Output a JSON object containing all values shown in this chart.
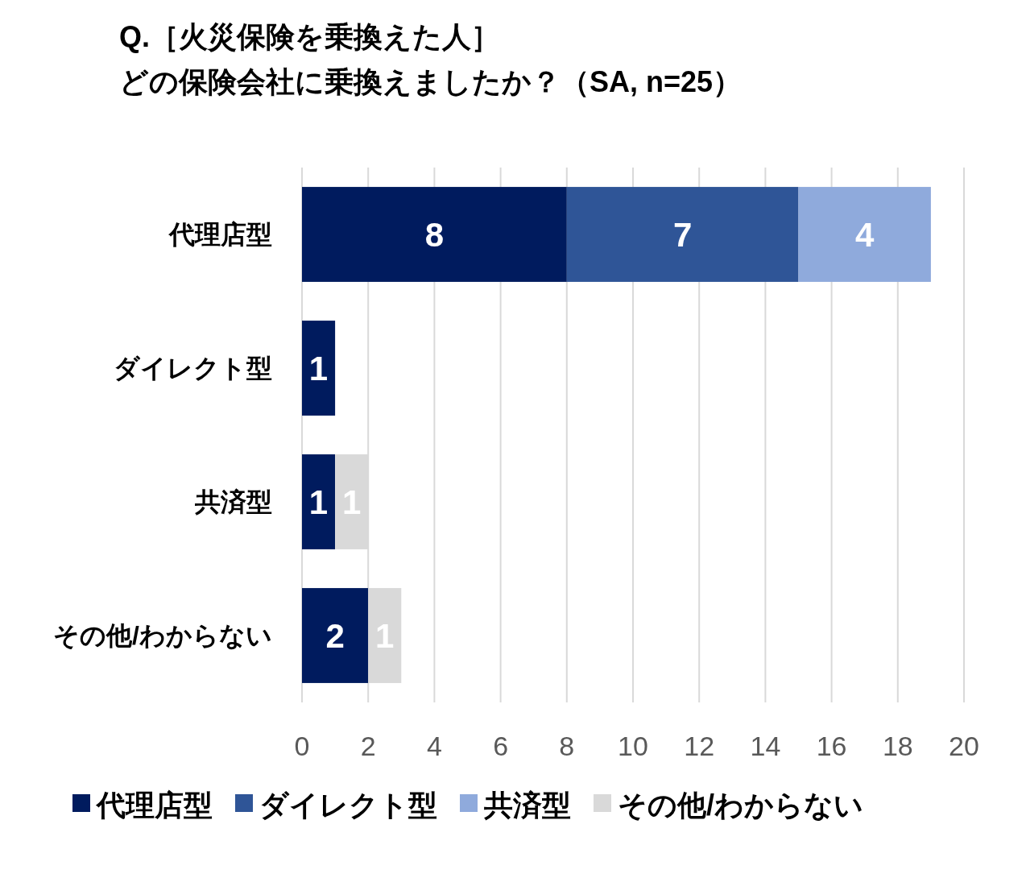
{
  "chart_data": {
    "type": "bar",
    "orientation": "horizontal",
    "stacked": true,
    "title": "Q.［火災保険を乗換えた人］",
    "subtitle": "どの保険会社に乗換えましたか？（SA, n=25）",
    "categories": [
      "代理店型",
      "ダイレクト型",
      "共済型",
      "その他/わからない"
    ],
    "series": [
      {
        "name": "代理店型",
        "color": "#001b5e",
        "values": [
          8,
          1,
          1,
          2
        ]
      },
      {
        "name": "ダイレクト型",
        "color": "#2f5597",
        "values": [
          7,
          null,
          null,
          null
        ]
      },
      {
        "name": "共済型",
        "color": "#8faadc",
        "values": [
          4,
          null,
          null,
          null
        ]
      },
      {
        "name": "その他/わからない",
        "color": "#d9d9d9",
        "values": [
          null,
          null,
          1,
          1
        ]
      }
    ],
    "xlim": [
      0,
      20
    ],
    "xticks": [
      0,
      2,
      4,
      6,
      8,
      10,
      12,
      14,
      16,
      18,
      20
    ],
    "grid": "x",
    "legend": "bottom",
    "data_labels": true
  }
}
